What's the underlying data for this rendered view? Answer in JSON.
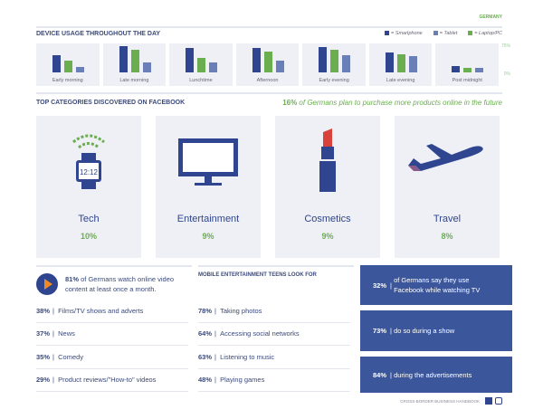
{
  "country": "GERMANY",
  "device_usage": {
    "title": "DEVICE USAGE THROUGHOUT THE DAY",
    "legend": [
      "= Smartphone",
      "= Tablet",
      "= Laptop/PC"
    ],
    "axis_max": "75%",
    "axis_min": "0%"
  },
  "chart_data": {
    "type": "bar",
    "title": "DEVICE USAGE THROUGHOUT THE DAY",
    "categories": [
      "Early morning",
      "Late morning",
      "Lunchtime",
      "Afternoon",
      "Early evening",
      "Late evening",
      "Post midnight"
    ],
    "ylim": [
      0,
      75
    ],
    "series": [
      {
        "name": "Smartphone",
        "color": "#2f4590",
        "values": [
          44,
          66,
          61,
          61,
          64,
          50,
          16
        ]
      },
      {
        "name": "Laptop/PC",
        "color": "#6aae4f",
        "values": [
          30,
          57,
          36,
          52,
          57,
          46,
          11
        ]
      },
      {
        "name": "Tablet",
        "color": "#6a7fb8",
        "values": [
          14,
          25,
          25,
          30,
          44,
          41,
          11
        ]
      }
    ]
  },
  "categories": {
    "title": "TOP CATEGORIES DISCOVERED ON FACEBOOK",
    "promo_pct": "16%",
    "promo_text": " of Germans plan to purchase more products online in the future",
    "items": [
      {
        "name": "Tech",
        "pct": "10%",
        "watch": "12:12"
      },
      {
        "name": "Entertainment",
        "pct": "9%"
      },
      {
        "name": "Cosmetics",
        "pct": "9%"
      },
      {
        "name": "Travel",
        "pct": "8%"
      }
    ]
  },
  "video": {
    "pct": "81%",
    "text": " of Germans watch online video content at least once a month.",
    "rows": [
      {
        "pct": "38%",
        "label": "Films/TV shows and adverts"
      },
      {
        "pct": "37%",
        "label": "News"
      },
      {
        "pct": "35%",
        "label": "Comedy"
      },
      {
        "pct": "29%",
        "label": "Product reviews/\"How-to\" videos"
      }
    ]
  },
  "teens": {
    "title": "MOBILE ENTERTAINMENT TEENS LOOK FOR",
    "rows": [
      {
        "pct": "78%",
        "label": "Taking photos"
      },
      {
        "pct": "64%",
        "label": "Accessing social networks"
      },
      {
        "pct": "63%",
        "label": "Listening to music"
      },
      {
        "pct": "48%",
        "label": "Playing games"
      }
    ]
  },
  "tv": [
    {
      "pct": "32%",
      "label": "of Germans say they use Facebook while watching TV"
    },
    {
      "pct": "73%",
      "label": "do so during a show"
    },
    {
      "pct": "84%",
      "label": "during the advertisements"
    }
  ],
  "footer": "CROSS-BORDER BUSINESS HANDBOOK"
}
